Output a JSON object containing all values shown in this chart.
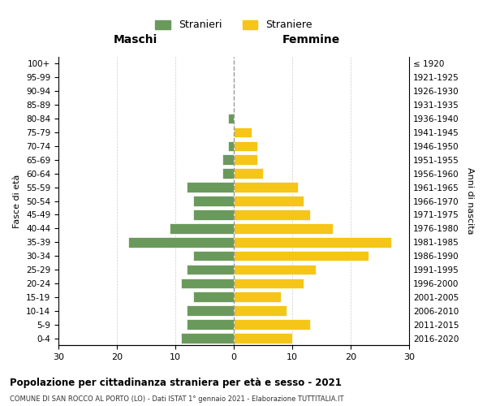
{
  "age_groups": [
    "0-4",
    "5-9",
    "10-14",
    "15-19",
    "20-24",
    "25-29",
    "30-34",
    "35-39",
    "40-44",
    "45-49",
    "50-54",
    "55-59",
    "60-64",
    "65-69",
    "70-74",
    "75-79",
    "80-84",
    "85-89",
    "90-94",
    "95-99",
    "100+"
  ],
  "birth_years": [
    "2016-2020",
    "2011-2015",
    "2006-2010",
    "2001-2005",
    "1996-2000",
    "1991-1995",
    "1986-1990",
    "1981-1985",
    "1976-1980",
    "1971-1975",
    "1966-1970",
    "1961-1965",
    "1956-1960",
    "1951-1955",
    "1946-1950",
    "1941-1945",
    "1936-1940",
    "1931-1935",
    "1926-1930",
    "1921-1925",
    "≤ 1920"
  ],
  "maschi": [
    9,
    8,
    8,
    7,
    9,
    8,
    7,
    18,
    11,
    7,
    7,
    8,
    2,
    2,
    1,
    0,
    1,
    0,
    0,
    0,
    0
  ],
  "femmine": [
    10,
    13,
    9,
    8,
    12,
    14,
    23,
    27,
    17,
    13,
    12,
    11,
    5,
    4,
    4,
    3,
    0,
    0,
    0,
    0,
    0
  ],
  "maschi_color": "#6a9a5b",
  "femmine_color": "#f5c518",
  "background_color": "#ffffff",
  "grid_color": "#cccccc",
  "title": "Popolazione per cittadinanza straniera per età e sesso - 2021",
  "subtitle": "COMUNE DI SAN ROCCO AL PORTO (LO) - Dati ISTAT 1° gennaio 2021 - Elaborazione TUTTITALIA.IT",
  "legend_maschi": "Stranieri",
  "legend_femmine": "Straniere",
  "xlabel_left": "Maschi",
  "xlabel_right": "Femmine",
  "ylabel_left": "Fasce di età",
  "ylabel_right": "Anni di nascita",
  "xlim": 30
}
